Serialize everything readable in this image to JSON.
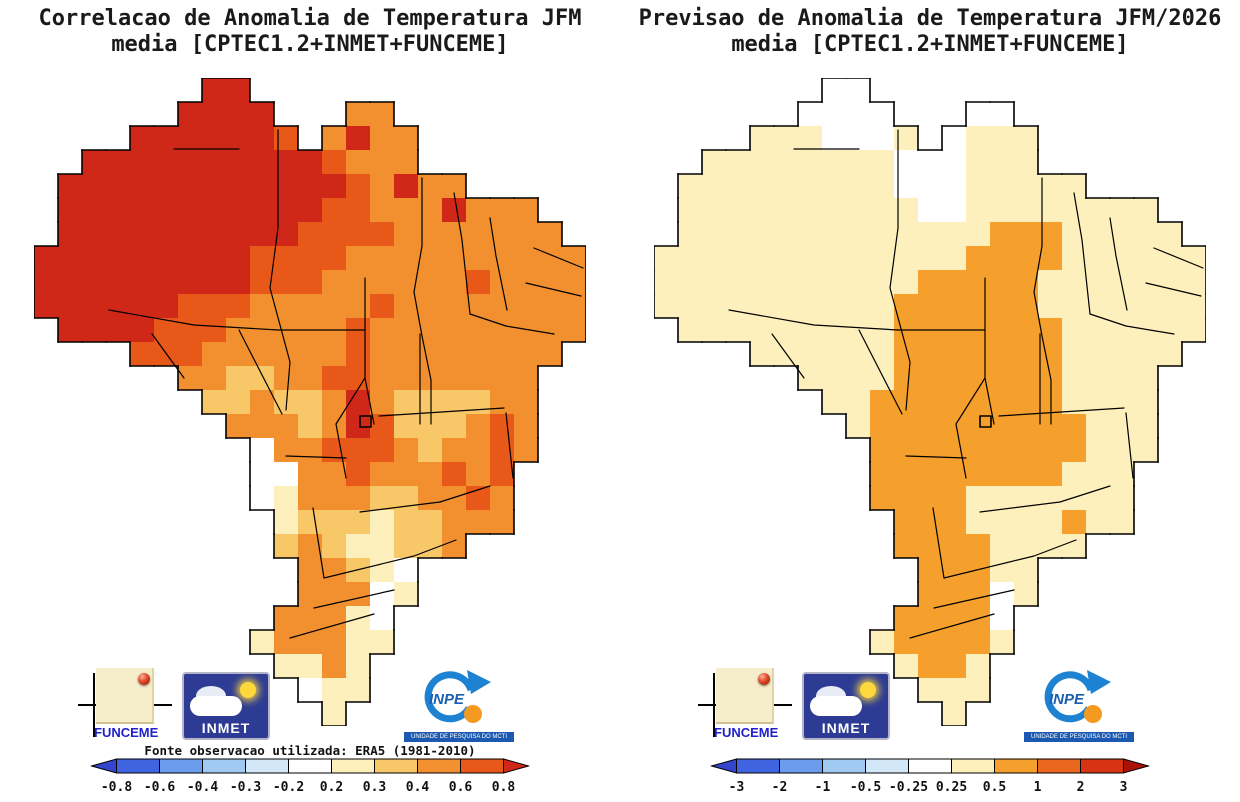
{
  "left_panel": {
    "title_line1": "Correlacao de Anomalia de Temperatura JFM",
    "title_line2": "media [CPTEC1.2+INMET+FUNCEME]",
    "source_note": "Fonte observacao utilizada: ERA5 (1981-2010)",
    "colorbar": {
      "tick_labels": [
        "-0.8",
        "-0.6",
        "-0.4",
        "-0.3",
        "-0.2",
        "0.2",
        "0.3",
        "0.4",
        "0.6",
        "0.8"
      ],
      "arrow_left_color": "#3444cc",
      "segment_colors": [
        "#4064e0",
        "#6c9cec",
        "#a0caf2",
        "#d2e8f8",
        "#ffffff",
        "#fdf0bc",
        "#f8c868",
        "#f29030",
        "#e85818"
      ],
      "arrow_right_color": "#d02818"
    },
    "map": {
      "palette": {
        "D": "#d02818",
        "R": "#e85818",
        "O": "#f29030",
        "Y": "#f8c868",
        "P": "#fdf0bc",
        "W": "#ffffff"
      },
      "rows": [
        ".......DD..............",
        "......DDDD...OO........",
        "....DDDDDDR.ODOO.......",
        "..DDDDDDDDDDROOO.......",
        ".DDDDDDDDDDDDRODOO.....",
        ".DDDDDDDDDDDRROOODOOO..",
        ".DDDDDDDDDDRRRROOOOOOO.",
        "DDDDDDDDDRRRROOOOOOOOOO",
        "DDDDDDDDDRRROOOOOOROOOO",
        "DDDDDDRRROOOOOROOOOOOOO",
        ".DDDDRRROOOOOROOOOOOOOO",
        "....RRROOOOOOROOOOOOOO.",
        "......OOYYOORROOOOOOO..",
        ".......YYOYYODOYYYYOO..",
        "........OOOYODRYYYORO..",
        ".........WOORRROYOORO..",
        ".........WWOOROOOROR...",
        ".........WPOOOYYOORO...",
        "..........PYYYPYYOOO...",
        "..........YOYPPYYO.....",
        "...........OOYPW.......",
        "...........OOOWP.......",
        "..........OOOPW........",
        ".........POOOPP........",
        "..........PPOP.........",
        "...........WPP.........",
        "............P.........."
      ]
    }
  },
  "right_panel": {
    "title_line1": "Previsao de Anomalia de Temperatura JFM/2026",
    "title_line2": "media [CPTEC1.2+INMET+FUNCEME]",
    "colorbar": {
      "tick_labels": [
        "-3",
        "-2",
        "-1",
        "-0.5",
        "-0.25",
        "0.25",
        "0.5",
        "1",
        "2",
        "3"
      ],
      "arrow_left_color": "#3444cc",
      "segment_colors": [
        "#4064e0",
        "#6c9cec",
        "#a0caf2",
        "#d2e8f8",
        "#ffffff",
        "#fdf0bc",
        "#f5a02c",
        "#ea671f",
        "#d83414"
      ],
      "arrow_right_color": "#aa1208"
    },
    "map": {
      "palette": {
        "D": "#c8220f",
        "R": "#ea671f",
        "O": "#f5a02c",
        "Y": "#f8c868",
        "P": "#fdf0bc",
        "W": "#ffffff"
      },
      "rows": [
        ".......WW..............",
        "......WWWW...WW........",
        "....PPPWWWP.WPPP.......",
        "..PPPPPPPPWWWPPP.......",
        ".PPPPPPPPPWWWPPPPP.....",
        ".PPPPPPPPPPWWPPPPPPPP..",
        ".PPPPPPPPPPPPPOOOPPPPP.",
        "PPPPPPPPPPPPPOOOOPPPPPP",
        "PPPPPPPPPPPOOOOOPPPPPPP",
        "PPPPPPPPPPOOOOOOPPPPPPP",
        ".PPPPPPPPPOOOOOOOPPPPPP",
        "....PPPPPPOOOOOOOPPPPP.",
        "......PPPPOOOOOOOPPPP..",
        ".......PPOOOOOOOOPPPP..",
        "........POOOOOOOOOPPP..",
        ".........OOOOOOOOOPPP..",
        ".........OOOOOOOOPPP...",
        ".........OOOOPPPPPPP...",
        "..........OOOPPPPOPP...",
        "..........OOOOPPPP.....",
        "...........OOOPP.......",
        "...........OOOWP.......",
        "..........OOOOW........",
        ".........POOOOP........",
        "..........POOP.........",
        "...........PPP.........",
        "............P.........."
      ]
    }
  },
  "logos": {
    "funceme": {
      "label": "FUNCEME"
    },
    "inmet": {
      "label": "INMET"
    },
    "inpe": {
      "label": "INPE",
      "sub_label": "UNIDADE DE PESQUISA DO MCTI"
    }
  }
}
